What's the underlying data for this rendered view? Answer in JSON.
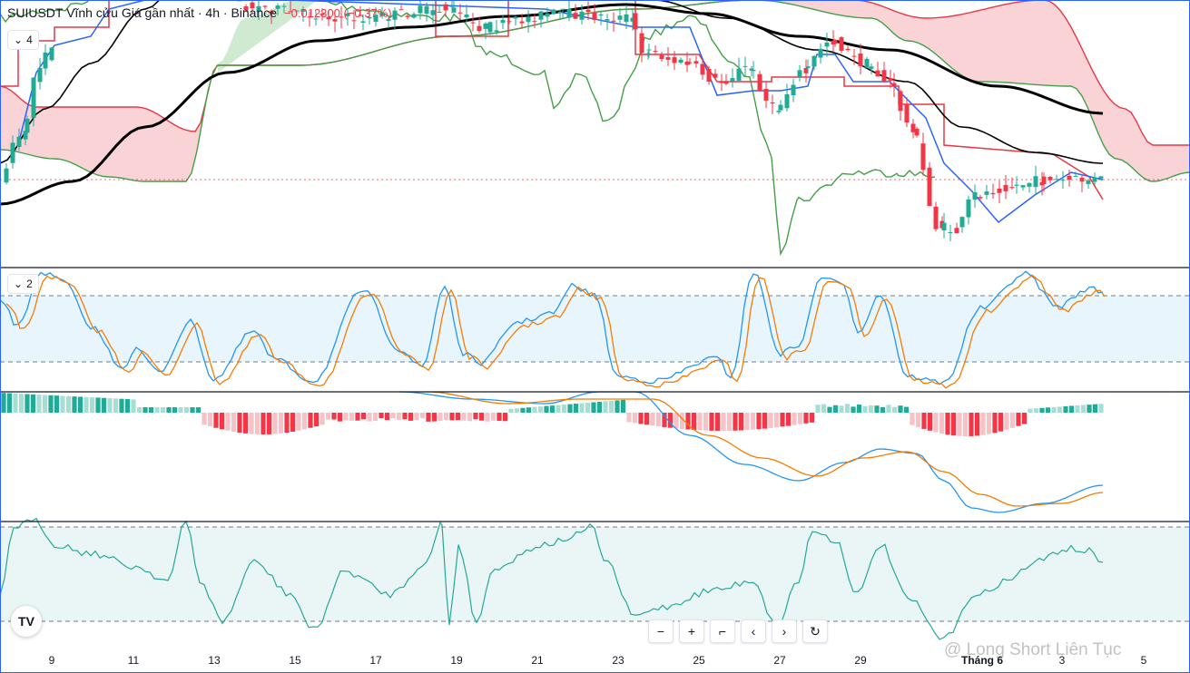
{
  "header": {
    "symbol": "SUIUSDT Vĩnh cửu Giá gần nhất · 4h · Binance",
    "change": "−0.012300 (−0.37%)"
  },
  "panes": [
    {
      "toggle": "4"
    },
    {
      "toggle": "2"
    }
  ],
  "toolbar": {
    "zoom_out": "−",
    "zoom_in": "+",
    "reset_scale": "⌐",
    "scroll_left": "‹",
    "scroll_right": "›",
    "reset": "↻"
  },
  "logo": "TV",
  "watermark": "@ Long Short Liên Tục",
  "colors": {
    "up": "#22ab94",
    "down": "#f23645",
    "ma": "#000000",
    "tenkan": "#2962ff",
    "kijun": "#e53945",
    "chikou": "#43a047",
    "cloud_bear": "#f8c4c8",
    "cloud_bull": "#c8e6c9",
    "stoch_k": "#2196f3",
    "stoch_d": "#f57c00",
    "rsi": "#26a69a"
  },
  "chart_data": [
    {
      "type": "candlestick",
      "pane": "price",
      "x": [
        "9",
        "11",
        "13",
        "15",
        "17",
        "19",
        "21",
        "23",
        "25",
        "27",
        "29",
        "Tháng 6",
        "3",
        "5"
      ],
      "series": [
        {
          "kind": "candles"
        },
        {
          "kind": "moving-average"
        },
        {
          "kind": "ichimoku"
        }
      ]
    },
    {
      "type": "line",
      "pane": "stochastic",
      "ylim": [
        0,
        100
      ],
      "bands": [
        20,
        80
      ]
    },
    {
      "type": "bar",
      "pane": "macd"
    },
    {
      "type": "line",
      "pane": "rsi",
      "ylim": [
        0,
        100
      ],
      "bands": [
        30,
        70
      ]
    }
  ]
}
